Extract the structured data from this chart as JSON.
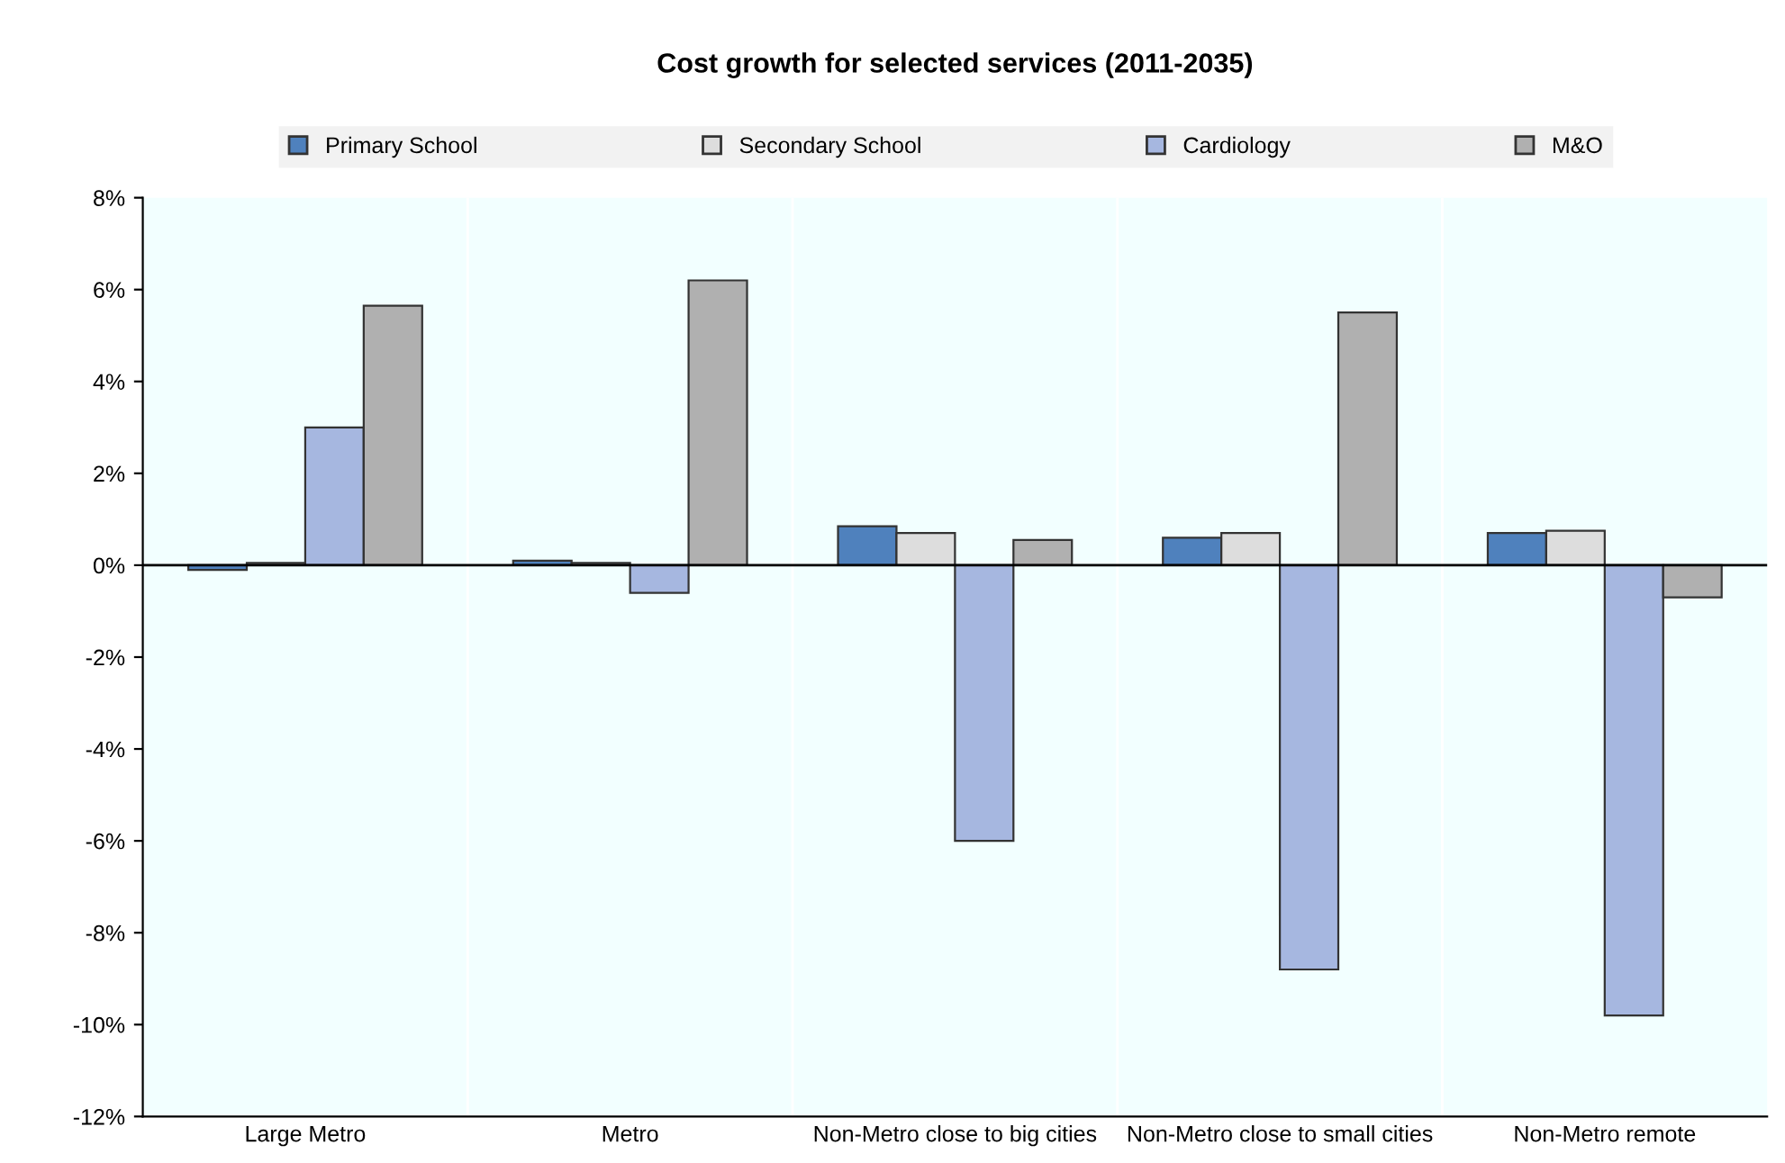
{
  "chart_data": {
    "type": "bar",
    "title": "Cost growth for selected services (2011-2035)",
    "categories": [
      "Large Metro",
      "Metro",
      "Non-Metro close to big cities",
      "Non-Metro close to small cities",
      "Non-Metro remote"
    ],
    "series": [
      {
        "name": "Primary School",
        "color": "#4f81bd",
        "values": [
          -0.1,
          0.1,
          0.85,
          0.6,
          0.7
        ]
      },
      {
        "name": "Secondary School",
        "color": "#dddddd",
        "values": [
          0.05,
          0.05,
          0.7,
          0.7,
          0.75
        ]
      },
      {
        "name": "Cardiology",
        "color": "#a6b7e0",
        "values": [
          3.0,
          -0.6,
          -6.0,
          -8.8,
          -9.8
        ]
      },
      {
        "name": "M&O",
        "color": "#b0b0b0",
        "values": [
          5.65,
          6.2,
          0.55,
          5.5,
          -0.7
        ]
      }
    ],
    "ylim": [
      -12,
      8
    ],
    "yticks": [
      {
        "value": -12,
        "label": "-12%"
      },
      {
        "value": -10,
        "label": "-10%"
      },
      {
        "value": -8,
        "label": "-8%"
      },
      {
        "value": -6,
        "label": "-6%"
      },
      {
        "value": -4,
        "label": "-4%"
      },
      {
        "value": -2,
        "label": "-2%"
      },
      {
        "value": 0,
        "label": "0%"
      },
      {
        "value": 2,
        "label": "2%"
      },
      {
        "value": 4,
        "label": "4%"
      },
      {
        "value": 6,
        "label": "6%"
      },
      {
        "value": 8,
        "label": "8%"
      }
    ],
    "legend": "top",
    "grid": false
  }
}
